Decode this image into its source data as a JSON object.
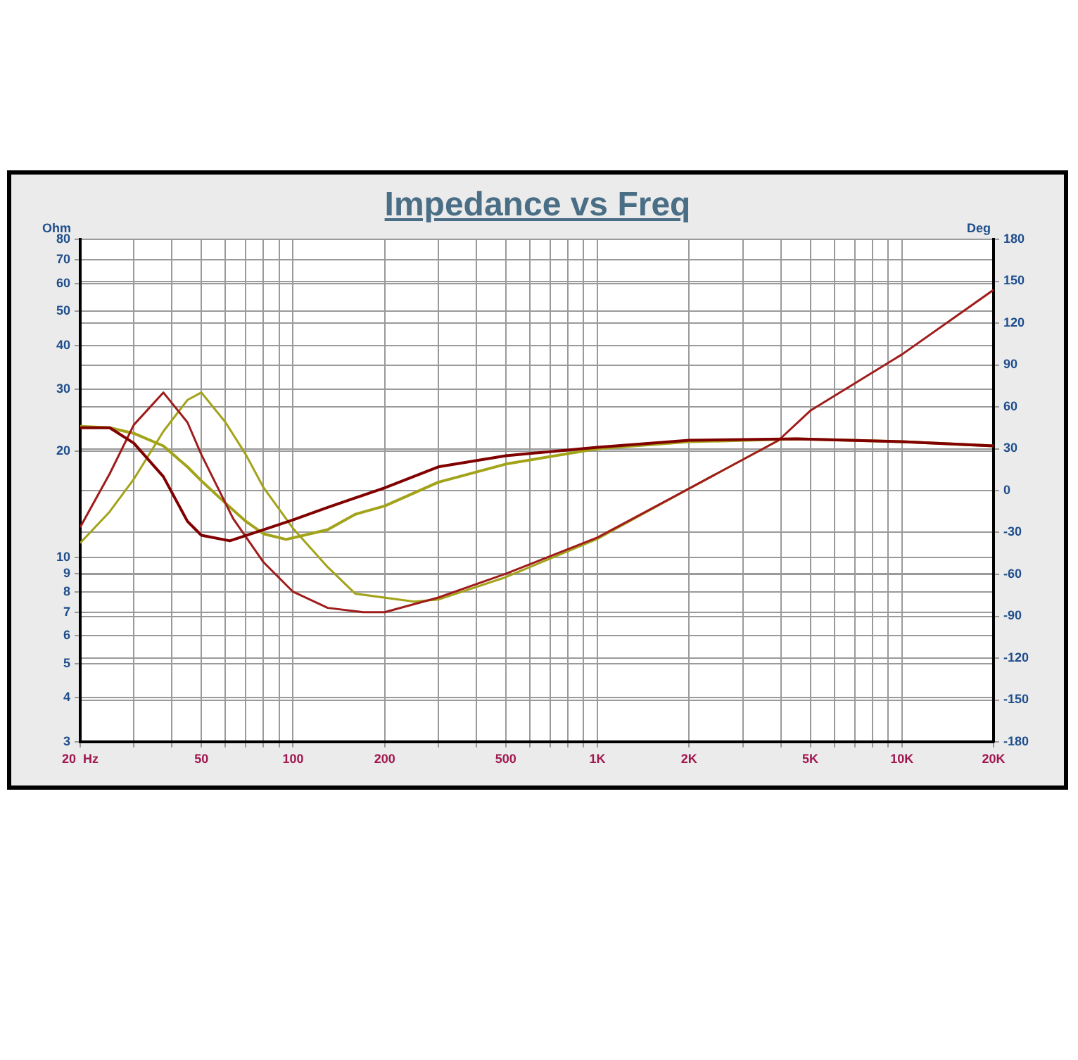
{
  "chart_data": {
    "type": "line",
    "title": "Impedance vs Freq",
    "ylabel": "Ohm",
    "y2label": "Deg",
    "log": "xy",
    "grid": true,
    "legend": false,
    "marker": "none",
    "line_style": "solid",
    "xlim": [
      20,
      20000
    ],
    "xticks": [
      {
        "value": 20,
        "label": "20  Hz"
      },
      {
        "value": 30,
        "label": null
      },
      {
        "value": 40,
        "label": null
      },
      50,
      {
        "value": 60,
        "label": null
      },
      {
        "value": 70,
        "label": null
      },
      {
        "value": 80,
        "label": null
      },
      {
        "value": 90,
        "label": null
      },
      100,
      200,
      {
        "value": 300,
        "label": null
      },
      {
        "value": 400,
        "label": null
      },
      500,
      {
        "value": 600,
        "label": null
      },
      {
        "value": 700,
        "label": null
      },
      {
        "value": 800,
        "label": null
      },
      {
        "value": 900,
        "label": null
      },
      {
        "value": 1000,
        "label": "1K"
      },
      {
        "value": 2000,
        "label": "2K"
      },
      {
        "value": 3000,
        "label": null
      },
      {
        "value": 4000,
        "label": null
      },
      {
        "value": 5000,
        "label": "5K"
      },
      {
        "value": 6000,
        "label": null
      },
      {
        "value": 7000,
        "label": null
      },
      {
        "value": 8000,
        "label": null
      },
      {
        "value": 9000,
        "label": null
      },
      {
        "value": 10000,
        "label": "10K"
      },
      {
        "value": 20000,
        "label": "20K"
      }
    ],
    "ylim": [
      3,
      80
    ],
    "yticks": [
      3,
      4,
      5,
      6,
      7,
      8,
      9,
      10,
      20,
      30,
      40,
      50,
      60,
      70,
      80
    ],
    "y2lim": [
      -180,
      180
    ],
    "y2ticks": [
      -180,
      -150,
      -120,
      -90,
      -60,
      -30,
      0,
      30,
      60,
      90,
      120,
      150,
      180
    ],
    "series": [
      {
        "color": "#a3a31a",
        "axis": "y",
        "x": [
          20,
          25,
          30,
          37.5,
          45,
          50,
          60,
          70,
          80,
          100,
          130,
          160,
          250,
          300,
          500,
          1000,
          2000,
          3930
        ],
        "values": [
          11.0,
          13.5,
          16.7,
          22.8,
          28,
          29.4,
          24.2,
          19.6,
          15.8,
          12.1,
          9.4,
          7.9,
          7.5,
          7.6,
          8.8,
          11.3,
          15.7,
          21.5
        ]
      },
      {
        "color": "#a3a31a",
        "axis": "y2",
        "x": [
          20,
          25,
          30,
          37.5,
          45,
          50,
          60,
          70,
          80,
          95,
          130,
          160,
          200,
          300,
          500,
          1000,
          2000,
          4500,
          10000,
          20000
        ],
        "values": [
          46,
          45,
          41,
          32,
          17,
          7,
          -9,
          -22,
          -31,
          -35,
          -28,
          -17,
          -11,
          6,
          19,
          30,
          35,
          37,
          35,
          32
        ]
      },
      {
        "color": "#a01c1c",
        "axis": "y",
        "x": [
          20,
          25,
          30,
          37.5,
          45,
          50,
          63.6,
          80,
          100,
          130,
          170,
          200,
          300,
          500,
          1000,
          2000,
          3930,
          5000,
          10000,
          20000
        ],
        "values": [
          12.2,
          17.3,
          23.8,
          29.4,
          24.2,
          19.6,
          12.9,
          9.7,
          8.0,
          7.2,
          7.0,
          7.0,
          7.7,
          9.0,
          11.4,
          15.7,
          21.5,
          26.1,
          37.7,
          57.5
        ]
      },
      {
        "color": "#800000",
        "axis": "y2",
        "x": [
          20,
          25,
          30,
          37.5,
          45,
          50,
          62,
          80,
          100,
          130,
          200,
          300,
          500,
          1000,
          2000,
          4500,
          10000,
          20000
        ],
        "values": [
          45,
          45,
          34,
          10,
          -22,
          -32,
          -36,
          -28,
          -21,
          -12,
          2,
          17,
          25,
          31,
          36,
          37,
          35,
          32
        ]
      }
    ]
  }
}
